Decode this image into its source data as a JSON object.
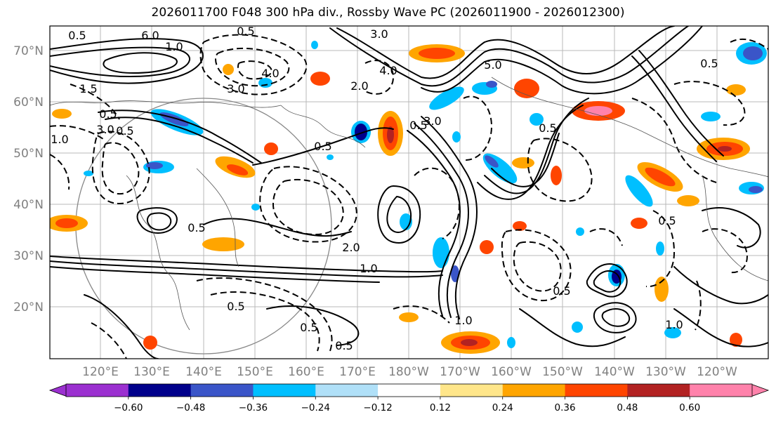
{
  "title": "2026011700 F048 300 hPa div., Rossby Wave PC (2026011900 - 2026012300)",
  "latitude_labels": [
    "70°N",
    "60°N",
    "50°N",
    "40°N",
    "30°N",
    "20°N"
  ],
  "longitude_labels": [
    "120°E",
    "130°E",
    "140°E",
    "150°E",
    "160°E",
    "170°E",
    "180°W",
    "170°W",
    "160°W",
    "150°W",
    "140°W",
    "130°W",
    "120°W"
  ],
  "colorbar": {
    "tick_labels": [
      "−0.60",
      "−0.48",
      "−0.36",
      "−0.24",
      "−0.12",
      "0.12",
      "0.24",
      "0.36",
      "0.48",
      "0.60"
    ],
    "colors": [
      "#9b30d0",
      "#00008b",
      "#3a55c8",
      "#00bfff",
      "#b0e0f8",
      "#ffffff",
      "#ffe68a",
      "#ffa500",
      "#ff4500",
      "#b22222",
      "#ff82ab"
    ]
  },
  "contour_labels": [
    "0.5",
    "6.0",
    "0.5",
    "3.0",
    "4.0",
    "3.0",
    "4.0",
    "1.0",
    "0.5",
    "3.0",
    "1.5",
    "1.0",
    "0.5",
    "2.0",
    "5.0",
    "0.5",
    "0.5",
    "3.0",
    "0.5",
    "2.0",
    "1.0",
    "0.5",
    "0.5",
    "0.5",
    "1.0",
    "0.5",
    "0.5",
    "1.0",
    "0.5",
    "0.5"
  ]
}
